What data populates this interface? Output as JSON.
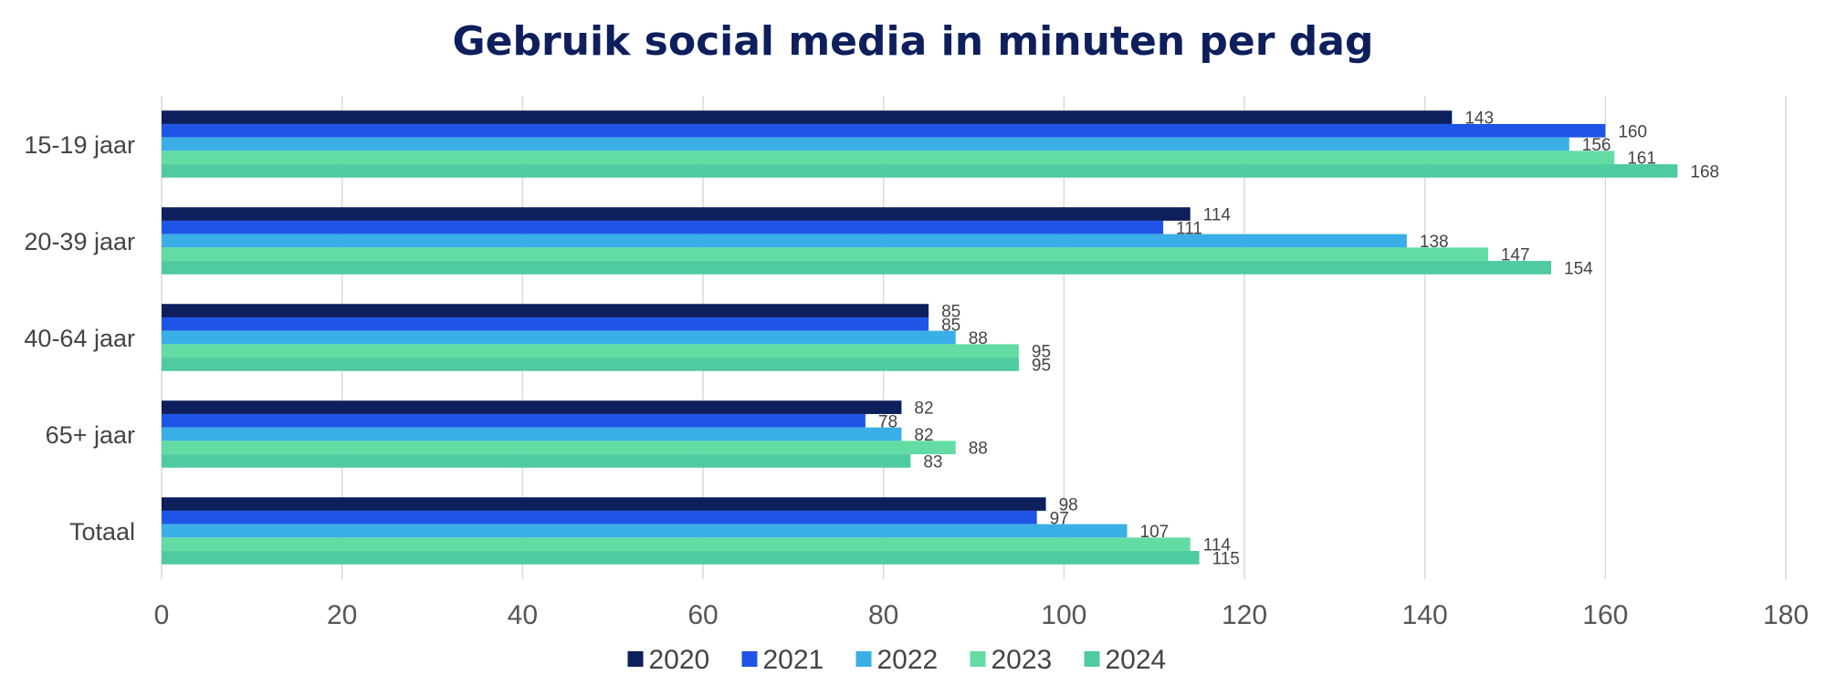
{
  "chart_data": {
    "type": "bar",
    "orientation": "horizontal",
    "title": "Gebruik social media in minuten per dag",
    "categories": [
      "15-19 jaar",
      "20-39 jaar",
      "40-64 jaar",
      "65+ jaar",
      "Totaal"
    ],
    "series": [
      {
        "name": "2020",
        "color": "#0d1f5c",
        "values": [
          143,
          114,
          85,
          82,
          98
        ]
      },
      {
        "name": "2021",
        "color": "#1f55e6",
        "values": [
          160,
          111,
          85,
          78,
          97
        ]
      },
      {
        "name": "2022",
        "color": "#3aaee6",
        "values": [
          156,
          138,
          88,
          82,
          107
        ]
      },
      {
        "name": "2023",
        "color": "#63dca3",
        "values": [
          161,
          147,
          95,
          88,
          114
        ]
      },
      {
        "name": "2024",
        "color": "#4ecba0",
        "values": [
          168,
          154,
          95,
          83,
          115
        ]
      }
    ],
    "xlim": [
      0,
      180
    ],
    "xticks": [
      "0",
      "20",
      "40",
      "60",
      "80",
      "100",
      "120",
      "140",
      "160",
      "180"
    ],
    "grid": true,
    "legend_position": "bottom"
  }
}
